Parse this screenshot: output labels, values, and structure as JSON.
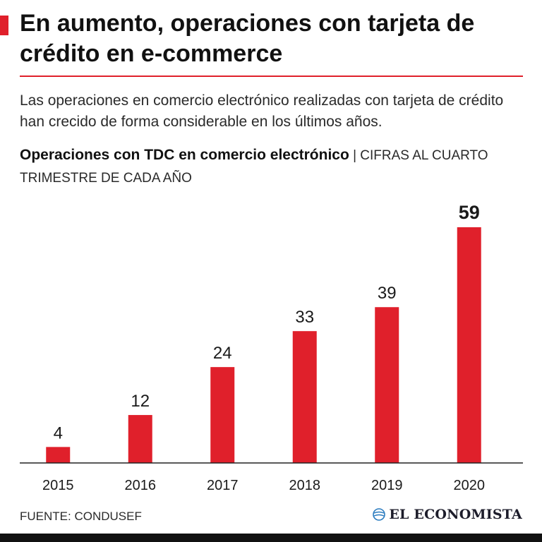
{
  "header": {
    "title": "En aumento, operaciones con tarjeta de crédito en e-commerce",
    "subtitle": "Las operaciones en comercio electrónico realizadas con tarjeta de crédito han crecido de forma considerable en los últimos años."
  },
  "chart_heading": {
    "bold": "Operaciones con TDC en comercio electrónico",
    "light": " | CIFRAS AL CUARTO TRIMESTRE DE CADA AÑO"
  },
  "chart_data": {
    "type": "bar",
    "title": "Operaciones con TDC en comercio electrónico",
    "subtitle": "CIFRAS AL CUARTO TRIMESTRE DE CADA AÑO",
    "categories": [
      "2015",
      "2016",
      "2017",
      "2018",
      "2019",
      "2020"
    ],
    "values": [
      4,
      12,
      24,
      33,
      39,
      59
    ],
    "value_labels": [
      "4",
      "12",
      "24",
      "33",
      "39",
      "59"
    ],
    "highlight_index": 5,
    "xlabel": "",
    "ylabel": "",
    "ylim": [
      0,
      59
    ],
    "grid": false,
    "legend": "none",
    "bar_color": "#e0202b"
  },
  "footer": {
    "source": "FUENTE: CONDUSEF",
    "logo_text": "EL ECONOMISTA"
  },
  "colors": {
    "accent": "#e0202b",
    "text": "#1a1a1a",
    "strip": "#111111"
  }
}
